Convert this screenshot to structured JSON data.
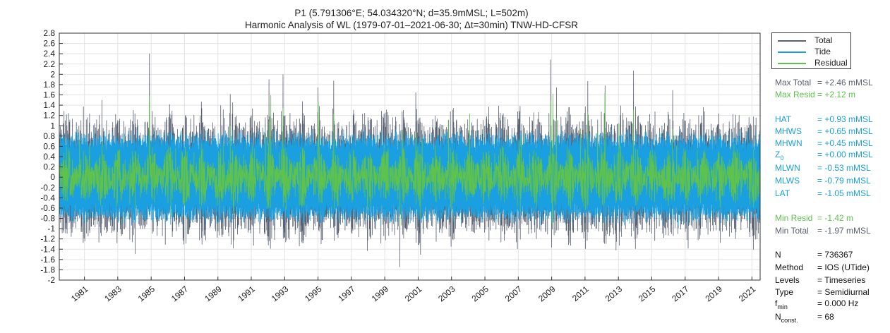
{
  "chart_data": {
    "type": "line",
    "title": "P1 (5.791306°E; 54.034320°N; d=35.9mMSL; L=502m)",
    "subtitle": "Harmonic Analysis of WL (1979-07-01–2021-06-30; Δt=30min) TNW-HD-CFSR",
    "xlabel": "",
    "ylabel": "",
    "ylim": [
      -2,
      2.8
    ],
    "yticks": [
      "2.8",
      "2.6",
      "2.4",
      "2.2",
      "2",
      "1.8",
      "1.6",
      "1.4",
      "1.2",
      "1",
      "0.8",
      "0.6",
      "0.4",
      "0.2",
      "0",
      "-0.2",
      "-0.4",
      "-0.6",
      "-0.8",
      "-1",
      "-1.2",
      "-1.4",
      "-1.6",
      "-1.8",
      "-2"
    ],
    "xlim": [
      "1979-07-01",
      "2021-06-30"
    ],
    "xticks": [
      "1981",
      "1983",
      "1985",
      "1987",
      "1989",
      "1991",
      "1993",
      "1995",
      "1997",
      "1999",
      "2001",
      "2003",
      "2005",
      "2007",
      "2009",
      "2011",
      "2013",
      "2015",
      "2017",
      "2019",
      "2021"
    ],
    "grid": true,
    "legend_position": "outside-right-top",
    "series": [
      {
        "name": "Total",
        "color": "#5a6170",
        "max": 2.46,
        "min": -1.97
      },
      {
        "name": "Tide",
        "color": "#1a9fe0",
        "max": 0.93,
        "min": -1.05
      },
      {
        "name": "Residual",
        "color": "#5ec24d",
        "max": 2.12,
        "min": -1.42
      }
    ]
  },
  "stats": {
    "max_total": {
      "label": "Max Total",
      "value": "= +2.46 mMSL",
      "color": "#5a6170"
    },
    "max_resid": {
      "label": "Max Resid",
      "value": "= +2.12 m",
      "color": "#5ec24d"
    },
    "hat": {
      "label": "HAT",
      "value": "= +0.93 mMSL"
    },
    "mhws": {
      "label": "MHWS",
      "value": "= +0.65 mMSL"
    },
    "mhwn": {
      "label": "MHWN",
      "value": "= +0.45 mMSL"
    },
    "z0": {
      "label": "Z",
      "sub": "0",
      "value": "= +0.00 mMSL"
    },
    "mlwn": {
      "label": "MLWN",
      "value": "= -0.53 mMSL"
    },
    "mlws": {
      "label": "MLWS",
      "value": "= -0.79 mMSL"
    },
    "lat": {
      "label": "LAT",
      "value": "= -1.05 mMSL"
    },
    "min_resid": {
      "label": "Min Resid",
      "value": "= -1.42 m"
    },
    "min_total": {
      "label": "Min Total",
      "value": "= -1.97 mMSL"
    },
    "tide_color": "#1a9fe0",
    "n": {
      "label": "N",
      "value": "= 736367"
    },
    "method": {
      "label": "Method",
      "value": "= IOS (UTide)"
    },
    "levels": {
      "label": "Levels",
      "value": "= Timeseries"
    },
    "type": {
      "label": "Type",
      "value": "= Semidiurnal"
    },
    "fmin": {
      "label": "f",
      "sub": "min",
      "value": "= 0.000 Hz"
    },
    "nconst": {
      "label": "N",
      "sub": "const.",
      "value": "= 68"
    }
  }
}
